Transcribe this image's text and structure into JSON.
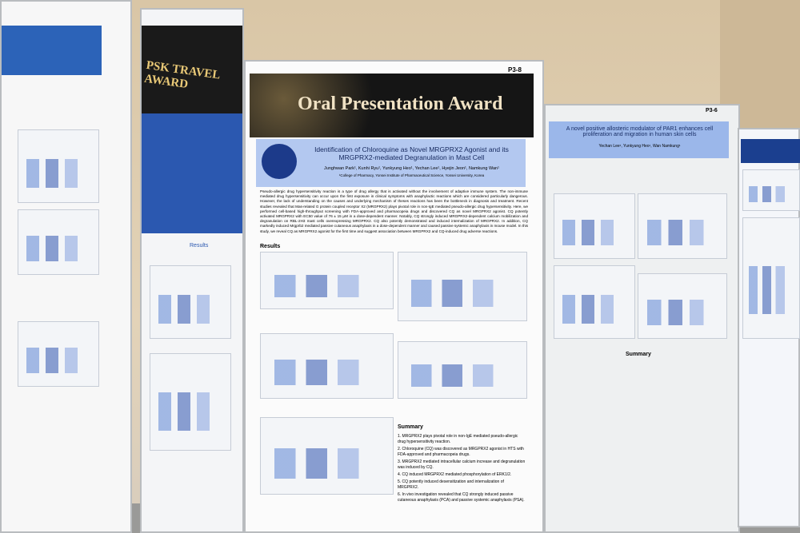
{
  "center_poster": {
    "board_label": "P3-8",
    "award": "Oral Presentation Award",
    "title": "Identification of Chloroquine as Novel MRGPRX2 Agonist and its MRGPRX2-mediated Degranulation in Mast Cell",
    "authors": "Junghwan Park¹, Kunhi Ryu¹, Yunkyung Heo¹, Yechan Lee¹, Hyejin Jeon¹, Namkung Wan¹",
    "affiliation": "¹College of Pharmacy, Yonsei Institute of Pharmaceutical Science, Yonsei University, Korea",
    "abstract": "Pseudo-allergic drug hypersensitivity reaction is a type of drug allergy that is activated without the involvement of adaptive immune system. The non-immune mediated drug hypersensitivity can occur upon the first exposure in clinical symptoms with anaphylactic reactions which are considered particularly dangerous. However, the lack of understanding on the causes and underlying mechanism of theses reactions has been the bottleneck in diagnosis and treatment. Recent studies revealed that Mas-related G protein coupled receptor X2 (MRGPRX2) plays pivotal role in non-IgE mediated pseudo-allergic drug hypersensitivity. Here, we performed cell-based high-throughput screening with FDA-approved and pharmacopeia drugs and discovered CQ as novel MRGPRX2 agonist. CQ potently activated MRGPRX2 with EC50 value of 76 ± 15 μM in a dose-dependent manner. Notably, CQ strongly induced MRGPRX2-dependent calcium mobilization and degranulation on RBL-2H3 mast cells overexpressing MRGPRX2. CQ also potently demonstrated and induced internalization of MRGPRX2. In addition, CQ markedly induced Mrgprb2 mediated passive cutaneous anaphylaxis in a dose-dependent manner and caused passive systemic anaphylaxis in mouse model. In this study, we reveal CQ as MRGPRX2 agonist for the first time and suggest association between MRGPRX2 and CQ-induced drug adverse reactions.",
    "results_heading": "Results",
    "summary_heading": "Summary",
    "summary": [
      "1. MRGPRX2 plays pivotal role in non-IgE mediated pseudo-allergic drug hypersensitivity reaction.",
      "2. Chloroquine (CQ) was discovered as MRGPRX2 agonist in HTS with FDA-approved and pharmacopeia drugs.",
      "3. MRGPRX2 mediated intracellular calcium increase and degranulation was induced by CQ.",
      "4. CQ induced MRGPRX2 mediated phosphorylation of ERK1/2.",
      "5. CQ potently induced desensitization and internalization of MRGPRX2.",
      "6. In vivo investigation revealed that CQ strongly induced passive cutaneous anaphylaxis (PCA) and passive systemic anaphylaxis (PSA)."
    ]
  },
  "left_poster": {
    "award": "PSK TRAVEL AWARD",
    "heading": "Results"
  },
  "right_poster": {
    "board_label": "P3-6",
    "title": "A novel positive allosteric modulator of PAR1 enhances cell proliferation and migration in human skin cells",
    "authors": "Yechan Lee¹, Yunkyung Heo¹, Wan Namkung¹",
    "summary_heading": "Summary"
  }
}
